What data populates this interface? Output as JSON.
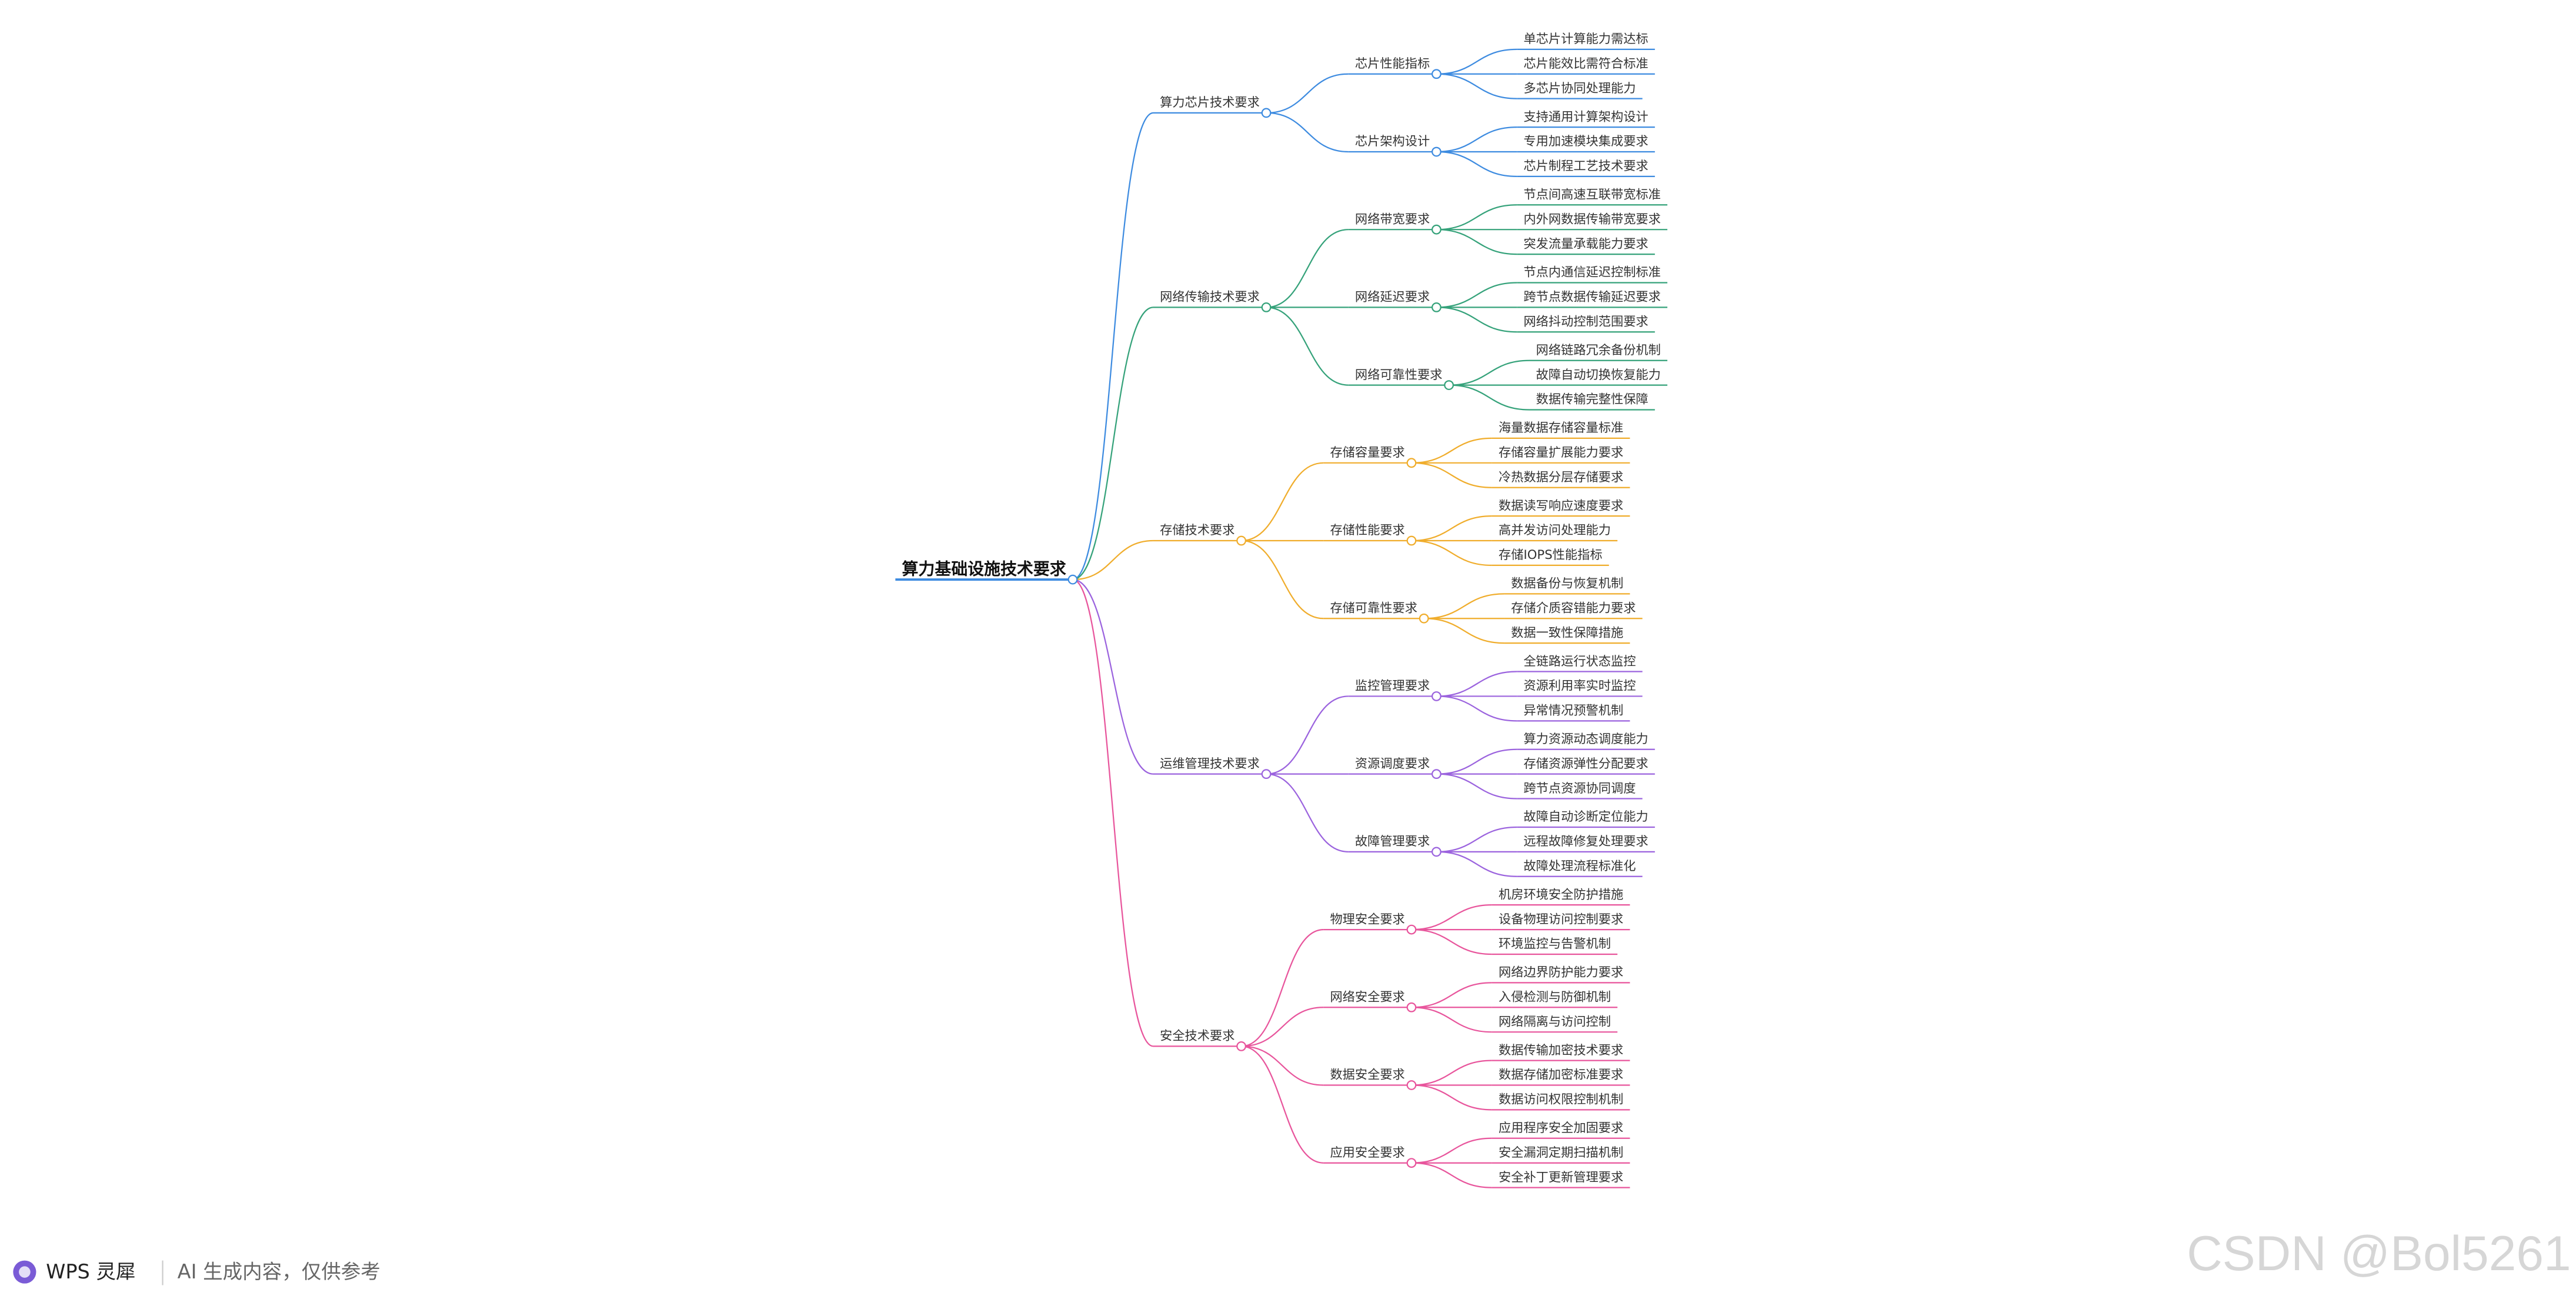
{
  "title": "算力基础设施技术要求",
  "branches": [
    {
      "label": "算力芯片技术要求",
      "children": [
        {
          "label": "芯片性能指标",
          "children": [
            "单芯片计算能力需达标",
            "芯片能效比需符合标准",
            "多芯片协同处理能力"
          ]
        },
        {
          "label": "芯片架构设计",
          "children": [
            "支持通用计算架构设计",
            "专用加速模块集成要求",
            "芯片制程工艺技术要求"
          ]
        }
      ]
    },
    {
      "label": "网络传输技术要求",
      "children": [
        {
          "label": "网络带宽要求",
          "children": [
            "节点间高速互联带宽标准",
            "内外网数据传输带宽要求",
            "突发流量承载能力要求"
          ]
        },
        {
          "label": "网络延迟要求",
          "children": [
            "节点内通信延迟控制标准",
            "跨节点数据传输延迟要求",
            "网络抖动控制范围要求"
          ]
        },
        {
          "label": "网络可靠性要求",
          "children": [
            "网络链路冗余备份机制",
            "故障自动切换恢复能力",
            "数据传输完整性保障"
          ]
        }
      ]
    },
    {
      "label": "存储技术要求",
      "children": [
        {
          "label": "存储容量要求",
          "children": [
            "海量数据存储容量标准",
            "存储容量扩展能力要求",
            "冷热数据分层存储要求"
          ]
        },
        {
          "label": "存储性能要求",
          "children": [
            "数据读写响应速度要求",
            "高并发访问处理能力",
            "存储IOPS性能指标"
          ]
        },
        {
          "label": "存储可靠性要求",
          "children": [
            "数据备份与恢复机制",
            "存储介质容错能力要求",
            "数据一致性保障措施"
          ]
        }
      ]
    },
    {
      "label": "运维管理技术要求",
      "children": [
        {
          "label": "监控管理要求",
          "children": [
            "全链路运行状态监控",
            "资源利用率实时监控",
            "异常情况预警机制"
          ]
        },
        {
          "label": "资源调度要求",
          "children": [
            "算力资源动态调度能力",
            "存储资源弹性分配要求",
            "跨节点资源协同调度"
          ]
        },
        {
          "label": "故障管理要求",
          "children": [
            "故障自动诊断定位能力",
            "远程故障修复处理要求",
            "故障处理流程标准化"
          ]
        }
      ]
    },
    {
      "label": "安全技术要求",
      "children": [
        {
          "label": "物理安全要求",
          "children": [
            "机房环境安全防护措施",
            "设备物理访问控制要求",
            "环境监控与告警机制"
          ]
        },
        {
          "label": "网络安全要求",
          "children": [
            "网络边界防护能力要求",
            "入侵检测与防御机制",
            "网络隔离与访问控制"
          ]
        },
        {
          "label": "数据安全要求",
          "children": [
            "数据传输加密技术要求",
            "数据存储加密标准要求",
            "数据访问权限控制机制"
          ]
        },
        {
          "label": "应用安全要求",
          "children": [
            "应用程序安全加固要求",
            "安全漏洞定期扫描机制",
            "安全补丁更新管理要求"
          ]
        }
      ]
    }
  ],
  "footer": {
    "brand": "WPS 灵犀",
    "note": "AI 生成内容，仅供参考"
  },
  "watermark": "CSDN @Bol5261"
}
